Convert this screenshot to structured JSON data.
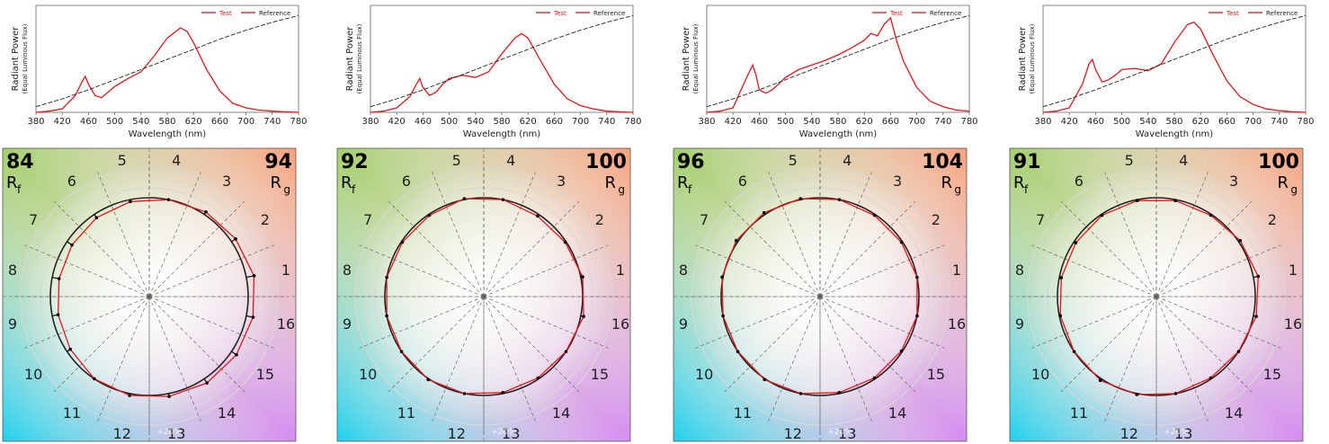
{
  "colors": {
    "test": "#e8141a",
    "reference": "#222222",
    "axis": "#666666",
    "grid_circle": "#d8d8d8"
  },
  "chart_data": [
    {
      "type": "line",
      "xlabel": "Wavelength (nm)",
      "ylabel": "Radiant Power",
      "ylabel_sub": "(Equal Luminous Flux)",
      "xlim": [
        380,
        780
      ],
      "xticks": [
        "380",
        "420",
        "460",
        "500",
        "540",
        "580",
        "620",
        "660",
        "700",
        "740",
        "780"
      ],
      "legend": [
        "Test",
        "Reference"
      ],
      "legend_position": "top-right",
      "series": [
        {
          "name": "Test",
          "x": [
            380,
            400,
            420,
            440,
            450,
            455,
            460,
            470,
            480,
            490,
            500,
            520,
            540,
            560,
            580,
            600,
            610,
            620,
            640,
            660,
            680,
            700,
            720,
            740,
            760,
            780
          ],
          "values": [
            0.0,
            0.01,
            0.03,
            0.15,
            0.27,
            0.32,
            0.25,
            0.15,
            0.13,
            0.18,
            0.23,
            0.3,
            0.36,
            0.5,
            0.66,
            0.75,
            0.72,
            0.62,
            0.38,
            0.19,
            0.08,
            0.04,
            0.02,
            0.01,
            0.005,
            0.0
          ]
        },
        {
          "name": "Reference",
          "x": [
            380,
            420,
            460,
            500,
            540,
            580,
            620,
            660,
            700,
            740,
            780
          ],
          "values": [
            0.05,
            0.12,
            0.2,
            0.29,
            0.38,
            0.47,
            0.56,
            0.65,
            0.73,
            0.8,
            0.86
          ]
        }
      ]
    },
    {
      "type": "line",
      "xlabel": "Wavelength (nm)",
      "ylabel": "Radiant Power",
      "ylabel_sub": "(Equal Luminous Flux)",
      "xlim": [
        380,
        780
      ],
      "xticks": [
        "380",
        "420",
        "460",
        "500",
        "540",
        "580",
        "620",
        "660",
        "700",
        "740",
        "780"
      ],
      "legend": [
        "Test",
        "Reference"
      ],
      "legend_position": "top-right",
      "series": [
        {
          "name": "Test",
          "x": [
            380,
            400,
            420,
            440,
            450,
            455,
            460,
            470,
            480,
            490,
            500,
            520,
            540,
            560,
            580,
            600,
            610,
            620,
            640,
            660,
            680,
            700,
            720,
            740,
            760,
            780
          ],
          "values": [
            0.0,
            0.01,
            0.04,
            0.14,
            0.25,
            0.3,
            0.22,
            0.15,
            0.18,
            0.25,
            0.3,
            0.33,
            0.31,
            0.36,
            0.52,
            0.66,
            0.7,
            0.66,
            0.45,
            0.25,
            0.12,
            0.06,
            0.03,
            0.01,
            0.005,
            0.0
          ]
        },
        {
          "name": "Reference",
          "x": [
            380,
            420,
            460,
            500,
            540,
            580,
            620,
            660,
            700,
            740,
            780
          ],
          "values": [
            0.05,
            0.12,
            0.2,
            0.29,
            0.38,
            0.47,
            0.56,
            0.65,
            0.73,
            0.8,
            0.86
          ]
        }
      ]
    },
    {
      "type": "line",
      "xlabel": "Wavelength (nm)",
      "ylabel": "Radiant Power",
      "ylabel_sub": "(Equal Luminous Flux)",
      "xlim": [
        380,
        780
      ],
      "xticks": [
        "380",
        "420",
        "460",
        "500",
        "540",
        "580",
        "620",
        "660",
        "700",
        "740",
        "780"
      ],
      "legend": [
        "Test",
        "Reference"
      ],
      "legend_position": "top-right",
      "series": [
        {
          "name": "Test",
          "x": [
            380,
            400,
            420,
            440,
            450,
            455,
            460,
            470,
            480,
            500,
            520,
            540,
            560,
            580,
            600,
            620,
            630,
            640,
            650,
            660,
            670,
            680,
            700,
            720,
            740,
            760,
            780
          ],
          "values": [
            0.0,
            0.01,
            0.04,
            0.3,
            0.42,
            0.33,
            0.2,
            0.17,
            0.2,
            0.31,
            0.38,
            0.42,
            0.46,
            0.51,
            0.57,
            0.64,
            0.7,
            0.68,
            0.78,
            0.84,
            0.62,
            0.45,
            0.22,
            0.1,
            0.05,
            0.02,
            0.01
          ]
        },
        {
          "name": "Reference",
          "x": [
            380,
            420,
            460,
            500,
            540,
            580,
            620,
            660,
            700,
            740,
            780
          ],
          "values": [
            0.05,
            0.12,
            0.2,
            0.29,
            0.38,
            0.47,
            0.56,
            0.65,
            0.73,
            0.8,
            0.86
          ]
        }
      ]
    },
    {
      "type": "line",
      "xlabel": "Wavelength (nm)",
      "ylabel": "Radiant Power",
      "ylabel_sub": "(Equal Luminous Flux)",
      "xlim": [
        380,
        780
      ],
      "xticks": [
        "380",
        "420",
        "460",
        "500",
        "540",
        "580",
        "620",
        "660",
        "700",
        "740",
        "780"
      ],
      "legend": [
        "Test",
        "Reference"
      ],
      "legend_position": "top-right",
      "series": [
        {
          "name": "Test",
          "x": [
            380,
            400,
            420,
            440,
            450,
            455,
            460,
            470,
            480,
            490,
            500,
            520,
            540,
            560,
            580,
            600,
            610,
            620,
            640,
            660,
            680,
            700,
            720,
            740,
            760,
            780
          ],
          "values": [
            0.0,
            0.01,
            0.04,
            0.25,
            0.43,
            0.47,
            0.38,
            0.27,
            0.29,
            0.33,
            0.38,
            0.39,
            0.37,
            0.43,
            0.62,
            0.78,
            0.8,
            0.74,
            0.5,
            0.28,
            0.14,
            0.07,
            0.03,
            0.015,
            0.005,
            0.0
          ]
        },
        {
          "name": "Reference",
          "x": [
            380,
            420,
            460,
            500,
            540,
            580,
            620,
            660,
            700,
            740,
            780
          ],
          "values": [
            0.05,
            0.12,
            0.2,
            0.29,
            0.38,
            0.47,
            0.56,
            0.65,
            0.73,
            0.8,
            0.86
          ]
        }
      ]
    },
    {
      "type": "scatter",
      "subtype": "color-vector-graphic",
      "rf": "84",
      "rf_label": "R",
      "rf_sub": "f",
      "rg": "94",
      "rg_label": "R",
      "rg_sub": "g",
      "hue_bin_labels": [
        "1",
        "2",
        "3",
        "4",
        "5",
        "6",
        "7",
        "8",
        "9",
        "10",
        "11",
        "12",
        "13",
        "14",
        "15",
        "16"
      ],
      "scale_label": "+20%",
      "series": [
        {
          "name": "Test",
          "radius": [
            1.08,
            1.05,
            1.03,
            1.0,
            0.98,
            0.96,
            0.94,
            0.93,
            0.94,
            0.96,
            1.0,
            1.02,
            1.03,
            1.05,
            1.06,
            1.07
          ]
        },
        {
          "name": "Reference",
          "radius": [
            1,
            1,
            1,
            1,
            1,
            1,
            1,
            1,
            1,
            1,
            1,
            1,
            1,
            1,
            1,
            1
          ]
        }
      ]
    },
    {
      "type": "scatter",
      "subtype": "color-vector-graphic",
      "rf": "92",
      "rf_label": "R",
      "rf_sub": "f",
      "rg": "100",
      "rg_label": "R",
      "rg_sub": "g",
      "hue_bin_labels": [
        "1",
        "2",
        "3",
        "4",
        "5",
        "6",
        "7",
        "8",
        "9",
        "10",
        "11",
        "12",
        "13",
        "14",
        "15",
        "16"
      ],
      "scale_label": "+20%",
      "series": [
        {
          "name": "Test",
          "radius": [
            1.02,
            0.99,
            0.98,
            1.0,
            1.01,
            0.99,
            0.99,
            1.0,
            1.0,
            1.0,
            1.01,
            1.0,
            0.99,
            0.99,
            1.0,
            1.03
          ]
        },
        {
          "name": "Reference",
          "radius": [
            1,
            1,
            1,
            1,
            1,
            1,
            1,
            1,
            1,
            1,
            1,
            1,
            1,
            1,
            1,
            1
          ]
        }
      ]
    },
    {
      "type": "scatter",
      "subtype": "color-vector-graphic",
      "rf": "96",
      "rf_label": "R",
      "rf_sub": "f",
      "rg": "104",
      "rg_label": "R",
      "rg_sub": "g",
      "hue_bin_labels": [
        "1",
        "2",
        "3",
        "4",
        "5",
        "6",
        "7",
        "8",
        "9",
        "10",
        "11",
        "12",
        "13",
        "14",
        "15",
        "16"
      ],
      "scale_label": "+20%",
      "series": [
        {
          "name": "Test",
          "radius": [
            1.0,
            0.99,
            0.99,
            1.0,
            1.01,
            1.02,
            1.02,
            1.01,
            1.0,
            1.0,
            1.01,
            1.0,
            0.99,
            0.99,
            0.99,
            1.0
          ]
        },
        {
          "name": "Reference",
          "radius": [
            1,
            1,
            1,
            1,
            1,
            1,
            1,
            1,
            1,
            1,
            1,
            1,
            1,
            1,
            1,
            1
          ]
        }
      ]
    },
    {
      "type": "scatter",
      "subtype": "color-vector-graphic",
      "rf": "91",
      "rf_label": "R",
      "rf_sub": "f",
      "rg": "100",
      "rg_label": "R",
      "rg_sub": "g",
      "hue_bin_labels": [
        "1",
        "2",
        "3",
        "4",
        "5",
        "6",
        "7",
        "8",
        "9",
        "10",
        "11",
        "12",
        "13",
        "14",
        "15",
        "16"
      ],
      "scale_label": "+20%",
      "series": [
        {
          "name": "Test",
          "radius": [
            1.05,
            1.02,
            0.99,
            0.99,
            0.99,
            0.99,
            0.98,
            0.98,
            0.99,
            1.0,
            1.02,
            1.01,
            1.0,
            0.99,
            1.0,
            1.03
          ]
        },
        {
          "name": "Reference",
          "radius": [
            1,
            1,
            1,
            1,
            1,
            1,
            1,
            1,
            1,
            1,
            1,
            1,
            1,
            1,
            1,
            1
          ]
        }
      ]
    }
  ]
}
